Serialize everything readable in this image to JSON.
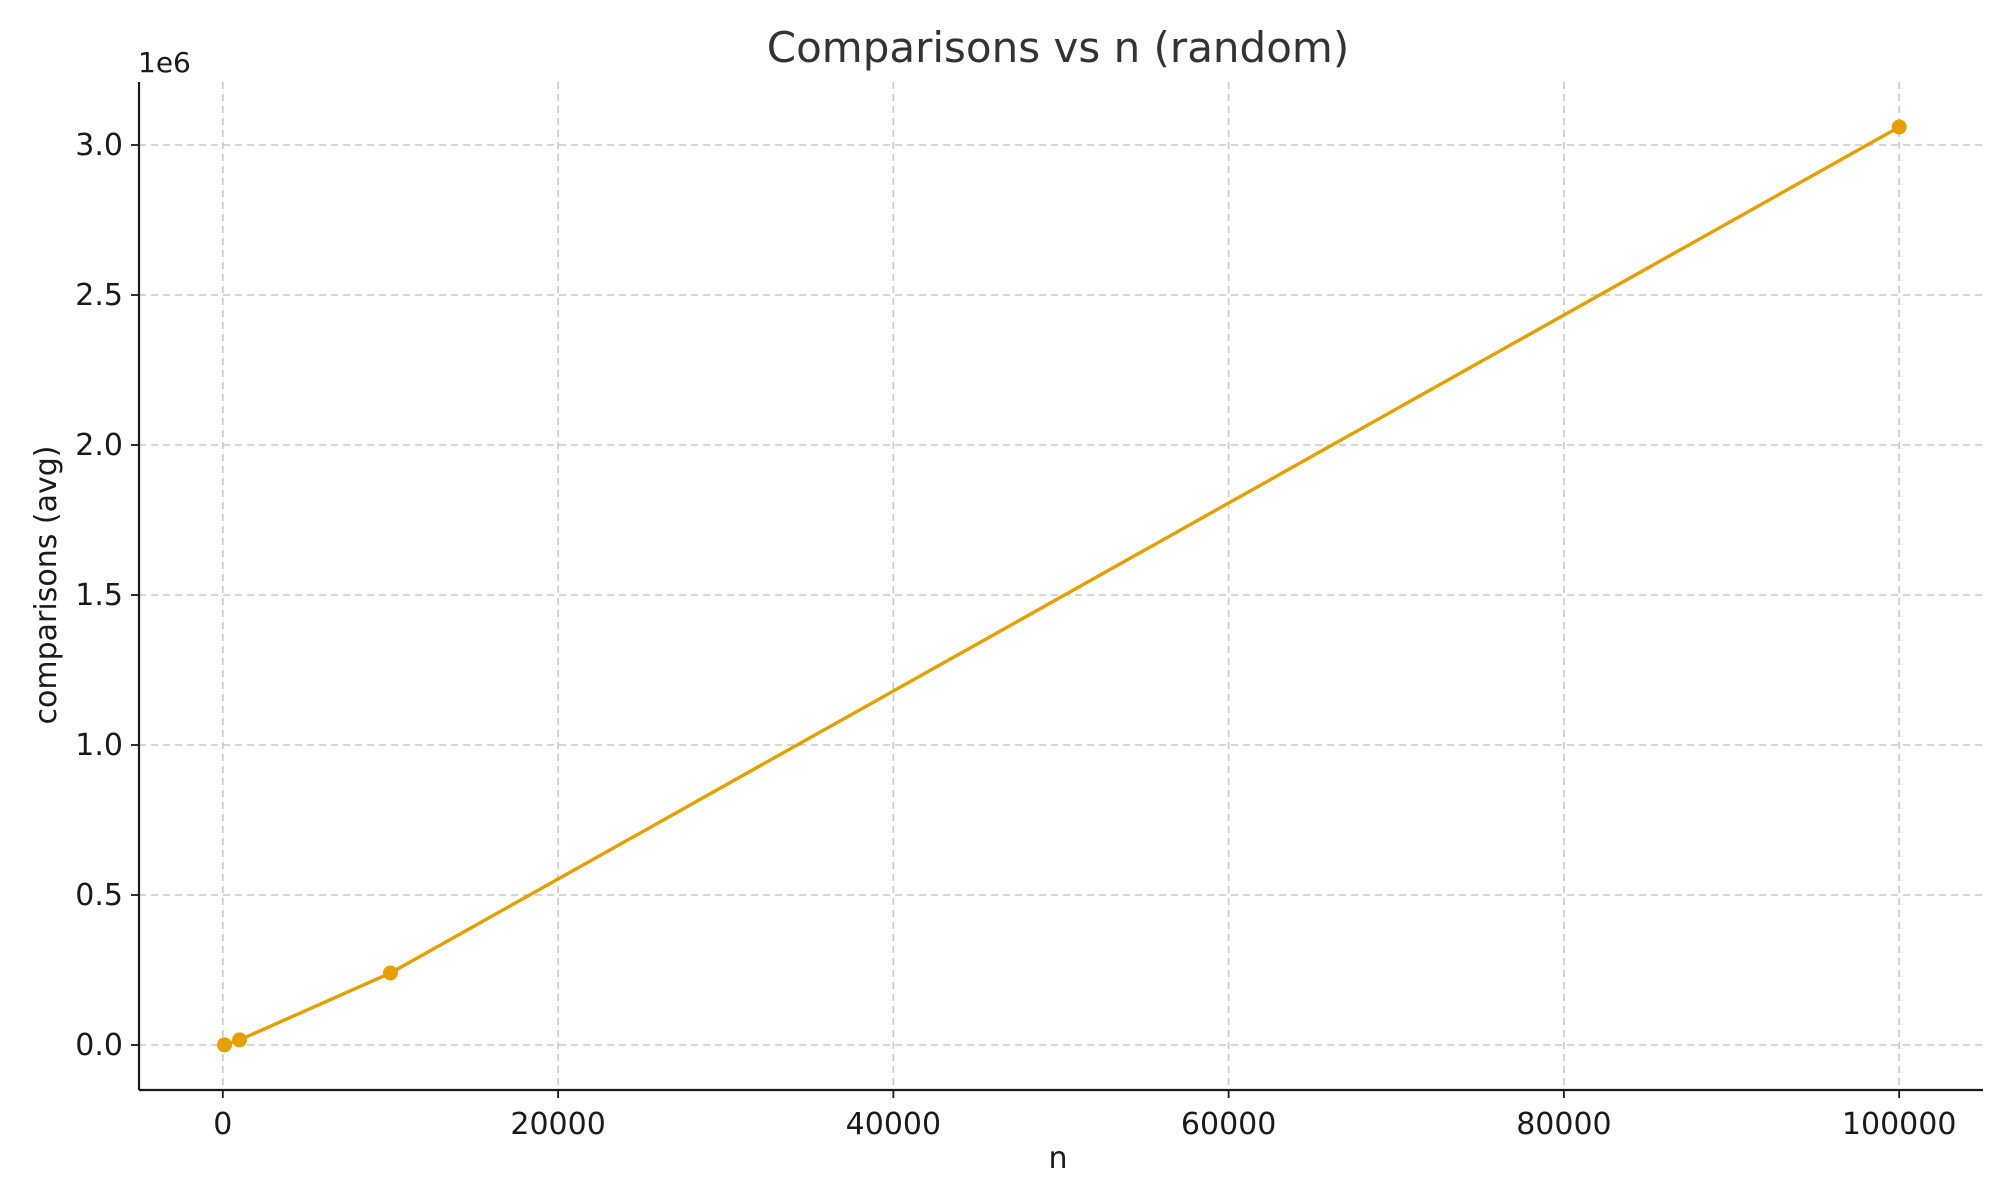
{
  "chart_data": {
    "type": "line",
    "title": "Comparisons vs n (random)",
    "xlabel": "n",
    "ylabel": "comparisons (avg)",
    "y_offset_label": "1e6",
    "xlim": [
      -5000,
      105000
    ],
    "ylim": [
      -150000,
      3210000
    ],
    "xticks": [
      0,
      20000,
      40000,
      60000,
      80000,
      100000
    ],
    "xtick_labels": [
      "0",
      "20000",
      "40000",
      "60000",
      "80000",
      "100000"
    ],
    "yticks": [
      0,
      500000,
      1000000,
      1500000,
      2000000,
      2500000,
      3000000
    ],
    "ytick_labels": [
      "0.0",
      "0.5",
      "1.0",
      "1.5",
      "2.0",
      "2.5",
      "3.0"
    ],
    "grid": true,
    "series": [
      {
        "color": "#E69F00",
        "x": [
          100,
          1000,
          10000,
          100000
        ],
        "y": [
          600,
          17000,
          240000,
          3060000
        ]
      }
    ]
  }
}
